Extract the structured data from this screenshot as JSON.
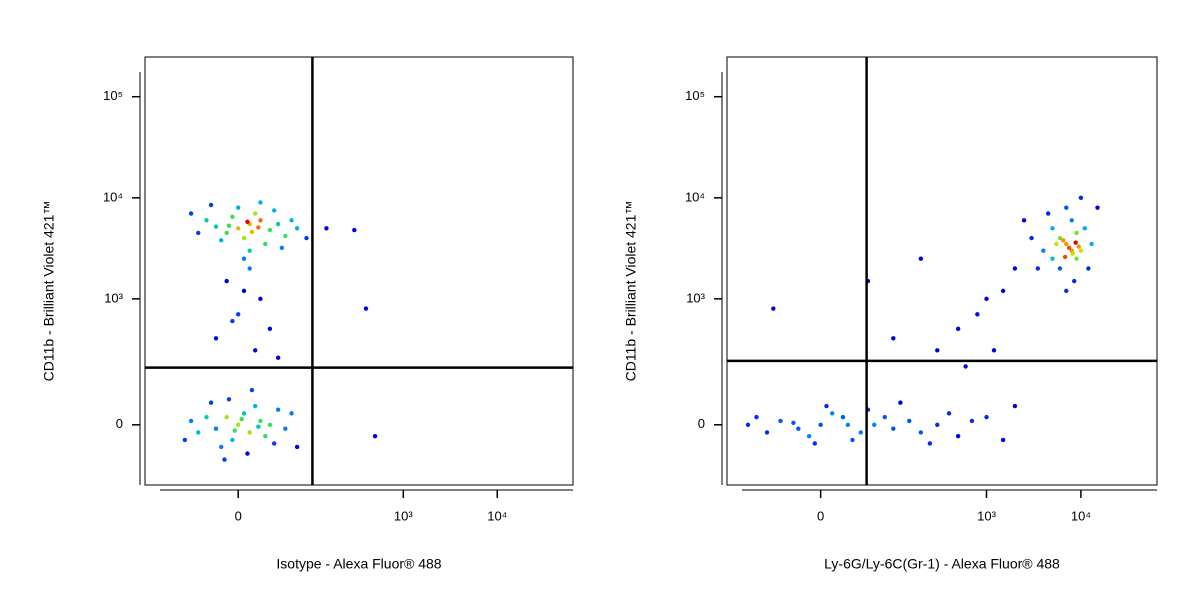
{
  "chart_data": [
    {
      "type": "scatter",
      "xlabel": "Isotype - Alexa Fluor® 488",
      "ylabel": "CD11b - Brilliant Violet 421™",
      "xscale": "biexponential",
      "yscale": "biexponential",
      "xlim": [
        -170,
        64000
      ],
      "ylim": [
        -210,
        247000
      ],
      "xticks": [
        0,
        {
          "value": 1000,
          "label": "10³"
        },
        {
          "value": 10000,
          "label": "10⁴"
        }
      ],
      "yticks": [
        0,
        {
          "value": 1000,
          "label": "10³"
        },
        {
          "value": 10000,
          "label": "10⁴"
        },
        {
          "value": 100000,
          "label": "10⁵"
        }
      ],
      "gates": {
        "x": 105,
        "y": 194
      },
      "x": [
        0,
        10,
        -10,
        20,
        5,
        -20,
        30,
        15,
        -5,
        25,
        40,
        -30,
        50,
        0,
        10,
        -15,
        35,
        60,
        -40,
        20,
        5,
        70,
        -25,
        45,
        8,
        12,
        -8,
        18,
        90,
        -50,
        10,
        -10,
        20,
        0,
        30,
        -20,
        15,
        40,
        5,
        -5,
        0,
        10,
        -10,
        5,
        -5,
        20,
        -20,
        15,
        -15,
        30,
        -30,
        25,
        40,
        -40,
        8,
        -8,
        50,
        -50,
        12,
        -12,
        60,
        35,
        -25,
        3,
        -3,
        18,
        70,
        -60,
        150,
        300,
        400,
        500
      ],
      "y": [
        5000,
        5500,
        4500,
        6000,
        4000,
        5200,
        4800,
        7000,
        6500,
        3500,
        5500,
        6000,
        4200,
        8000,
        3000,
        3800,
        7500,
        6000,
        4500,
        9000,
        2500,
        5000,
        8500,
        3200,
        5800,
        4600,
        5300,
        5100,
        4000,
        7000,
        2000,
        1500,
        1000,
        700,
        500,
        400,
        300,
        250,
        1200,
        600,
        0,
        -20,
        20,
        30,
        -40,
        10,
        -10,
        50,
        -60,
        0,
        20,
        -30,
        40,
        -20,
        -80,
        70,
        -10,
        10,
        100,
        -100,
        30,
        -50,
        60,
        15,
        -15,
        -5,
        -60,
        -40,
        5000,
        4800,
        800,
        -30
      ]
    },
    {
      "type": "scatter",
      "xlabel": "Ly-6G/Ly-6C(Gr-1) - Alexa Fluor® 488",
      "ylabel": "CD11b - Brilliant Violet 421™",
      "xscale": "biexponential",
      "yscale": "biexponential",
      "xlim": [
        -170,
        64000
      ],
      "ylim": [
        -210,
        247000
      ],
      "xticks": [
        0,
        {
          "value": 1000,
          "label": "10³"
        },
        {
          "value": 10000,
          "label": "10⁴"
        }
      ],
      "yticks": [
        0,
        {
          "value": 1000,
          "label": "10³"
        },
        {
          "value": 10000,
          "label": "10⁴"
        },
        {
          "value": 100000,
          "label": "10⁵"
        }
      ],
      "gates": {
        "x": 48,
        "y": 231
      },
      "x": [
        0,
        -20,
        20,
        -40,
        40,
        10,
        -10,
        60,
        80,
        100,
        150,
        200,
        300,
        400,
        500,
        700,
        -60,
        -80,
        5,
        -5,
        30,
        50,
        120,
        250,
        1000,
        1500,
        2000,
        -100,
        25,
        -25,
        300,
        500,
        800,
        1000,
        1500,
        600,
        100,
        50,
        -50,
        2000,
        200,
        1200,
        8000,
        7000,
        9000,
        6000,
        10000,
        5000,
        4000,
        12000,
        8000,
        6000,
        3000,
        7000,
        9000,
        5000,
        11000,
        8500,
        4500,
        3500,
        13000,
        7500,
        8200,
        6500,
        9500,
        15000,
        2500,
        10000,
        7000,
        5500,
        8800,
        6800
      ],
      "y": [
        0,
        -10,
        20,
        10,
        -20,
        30,
        -30,
        0,
        20,
        -10,
        10,
        -20,
        0,
        30,
        -30,
        10,
        -20,
        20,
        50,
        -50,
        -40,
        40,
        60,
        -50,
        20,
        -40,
        50,
        0,
        0,
        5,
        300,
        500,
        700,
        1000,
        1200,
        200,
        400,
        1500,
        800,
        2000,
        2500,
        300,
        3000,
        3500,
        2500,
        4000,
        3000,
        5000,
        3000,
        2000,
        6000,
        2000,
        4000,
        8000,
        4500,
        2500,
        5000,
        1500,
        7000,
        2000,
        3500,
        3200,
        2800,
        3800,
        3300,
        8000,
        6000,
        10000,
        1200,
        3500,
        3600,
        2600
      ]
    }
  ]
}
